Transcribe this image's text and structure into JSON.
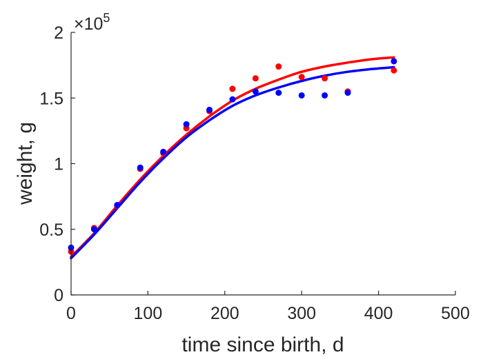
{
  "chart_data": {
    "type": "scatter",
    "xlabel": "time since birth, d",
    "ylabel": "weight, g",
    "xlim": [
      0,
      500
    ],
    "ylim": [
      0,
      200000
    ],
    "xticks": [
      0,
      100,
      200,
      300,
      400,
      500
    ],
    "xtick_labels": [
      "0",
      "100",
      "200",
      "300",
      "400",
      "500"
    ],
    "yticks": [
      0,
      50000,
      100000,
      150000,
      200000
    ],
    "ytick_labels": [
      "0",
      "0.5",
      "1",
      "1.5",
      "2"
    ],
    "y_exponent": {
      "prefix": "×10",
      "power": "5"
    },
    "grid": false,
    "legend": null,
    "series": [
      {
        "color": "#ff0000",
        "points": [
          [
            0,
            33000
          ],
          [
            30,
            51000
          ],
          [
            60,
            68000
          ],
          [
            90,
            96000
          ],
          [
            120,
            108000
          ],
          [
            150,
            127000
          ],
          [
            180,
            140000
          ],
          [
            210,
            157000
          ],
          [
            240,
            165000
          ],
          [
            270,
            174000
          ],
          [
            300,
            166000
          ],
          [
            330,
            165000
          ],
          [
            360,
            155000
          ],
          [
            420,
            171000
          ]
        ],
        "fit_curve": [
          [
            0,
            29000
          ],
          [
            30,
            47000
          ],
          [
            60,
            68000
          ],
          [
            90,
            88000
          ],
          [
            120,
            106000
          ],
          [
            150,
            122000
          ],
          [
            180,
            136000
          ],
          [
            210,
            148000
          ],
          [
            240,
            157000
          ],
          [
            270,
            164000
          ],
          [
            300,
            170000
          ],
          [
            330,
            174000
          ],
          [
            360,
            177000
          ],
          [
            390,
            179500
          ],
          [
            420,
            181000
          ]
        ]
      },
      {
        "color": "#0000ff",
        "points": [
          [
            0,
            36000
          ],
          [
            30,
            50000
          ],
          [
            60,
            68500
          ],
          [
            90,
            97000
          ],
          [
            120,
            109000
          ],
          [
            150,
            130000
          ],
          [
            180,
            141000
          ],
          [
            210,
            149000
          ],
          [
            240,
            155000
          ],
          [
            270,
            154000
          ],
          [
            300,
            152000
          ],
          [
            330,
            152000
          ],
          [
            360,
            154000
          ],
          [
            420,
            178000
          ]
        ],
        "fit_curve": [
          [
            0,
            28000
          ],
          [
            30,
            46000
          ],
          [
            60,
            66000
          ],
          [
            90,
            86000
          ],
          [
            120,
            104000
          ],
          [
            150,
            120000
          ],
          [
            180,
            133000
          ],
          [
            210,
            144000
          ],
          [
            240,
            152000
          ],
          [
            270,
            158000
          ],
          [
            300,
            163000
          ],
          [
            330,
            167000
          ],
          [
            360,
            170000
          ],
          [
            390,
            172000
          ],
          [
            420,
            173500
          ]
        ]
      }
    ]
  }
}
